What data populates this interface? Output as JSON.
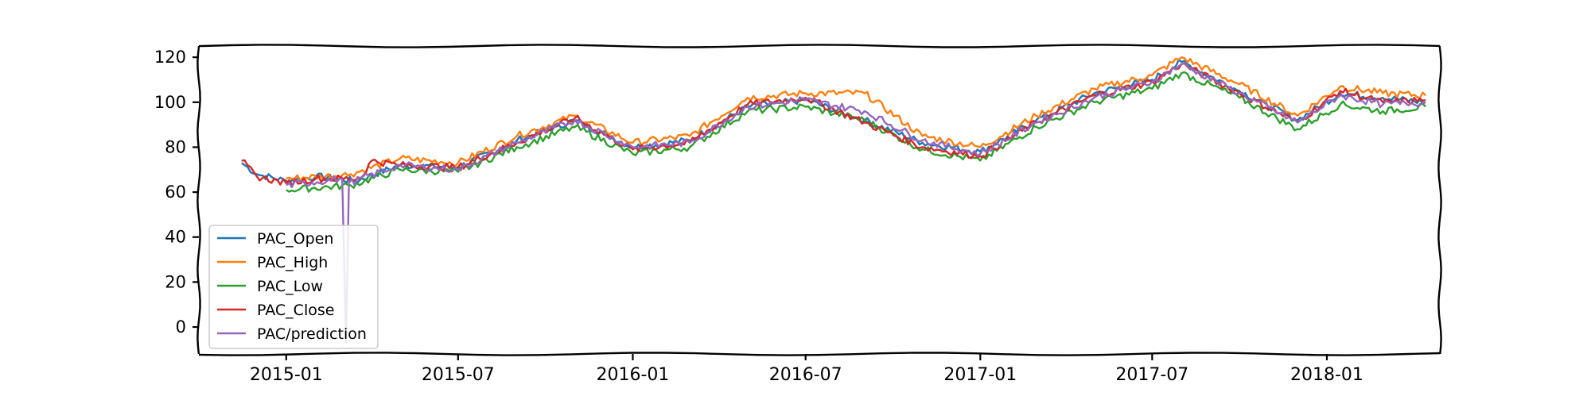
{
  "chart_data": {
    "type": "line",
    "title": "",
    "xlabel": "",
    "ylabel": "",
    "ylim": [
      -12,
      125
    ],
    "x_range": [
      "2014-10-01",
      "2018-04-30"
    ],
    "x_ticks": [
      "2015-01",
      "2015-07",
      "2016-01",
      "2016-07",
      "2017-01",
      "2017-07",
      "2018-01"
    ],
    "y_ticks": [
      "0",
      "20",
      "40",
      "60",
      "80",
      "100",
      "120"
    ],
    "legend_position": "lower-left",
    "grid": false,
    "style": "xkcd",
    "legend": [
      "PAC_Open",
      "PAC_High",
      "PAC_Low",
      "PAC_Close",
      "PAC/prediction"
    ],
    "series": [
      {
        "name": "PAC_Open",
        "color": "#1f77b4",
        "start": "2014-11-15",
        "values": [
          [
            "2014-11-15",
            73
          ],
          [
            "2014-12-01",
            68
          ],
          [
            "2015-01-01",
            65
          ],
          [
            "2015-02-01",
            67
          ],
          [
            "2015-03-15",
            65
          ],
          [
            "2015-05-01",
            72
          ],
          [
            "2015-07-01",
            71
          ],
          [
            "2015-09-01",
            83
          ],
          [
            "2015-11-01",
            92
          ],
          [
            "2016-01-01",
            80
          ],
          [
            "2016-03-01",
            83
          ],
          [
            "2016-05-01",
            98
          ],
          [
            "2016-07-01",
            101
          ],
          [
            "2016-09-01",
            92
          ],
          [
            "2016-11-01",
            82
          ],
          [
            "2017-01-01",
            78
          ],
          [
            "2017-03-01",
            92
          ],
          [
            "2017-05-01",
            104
          ],
          [
            "2017-07-01",
            110
          ],
          [
            "2017-08-01",
            118
          ],
          [
            "2017-10-01",
            105
          ],
          [
            "2017-12-01",
            92
          ],
          [
            "2018-01-15",
            104
          ],
          [
            "2018-03-01",
            102
          ],
          [
            "2018-04-15",
            100
          ]
        ]
      },
      {
        "name": "PAC_High",
        "color": "#ff7f0e",
        "start": "2015-01-01",
        "values": [
          [
            "2015-01-01",
            66
          ],
          [
            "2015-03-10",
            68
          ],
          [
            "2015-05-01",
            75
          ],
          [
            "2015-07-01",
            73
          ],
          [
            "2015-09-01",
            85
          ],
          [
            "2015-11-01",
            94
          ],
          [
            "2016-01-01",
            82
          ],
          [
            "2016-03-01",
            85
          ],
          [
            "2016-05-01",
            102
          ],
          [
            "2016-07-01",
            104
          ],
          [
            "2016-09-01",
            104
          ],
          [
            "2016-11-01",
            85
          ],
          [
            "2017-01-01",
            80
          ],
          [
            "2017-03-01",
            94
          ],
          [
            "2017-05-01",
            106
          ],
          [
            "2017-07-01",
            112
          ],
          [
            "2017-08-01",
            120
          ],
          [
            "2017-10-01",
            108
          ],
          [
            "2017-12-01",
            94
          ],
          [
            "2018-01-15",
            107
          ],
          [
            "2018-03-01",
            104
          ],
          [
            "2018-04-15",
            103
          ]
        ]
      },
      {
        "name": "PAC_Low",
        "color": "#2ca02c",
        "start": "2015-01-01",
        "values": [
          [
            "2015-01-01",
            61
          ],
          [
            "2015-03-10",
            63
          ],
          [
            "2015-05-01",
            70
          ],
          [
            "2015-07-01",
            69
          ],
          [
            "2015-09-01",
            80
          ],
          [
            "2015-11-01",
            89
          ],
          [
            "2016-01-01",
            77
          ],
          [
            "2016-03-01",
            80
          ],
          [
            "2016-05-01",
            96
          ],
          [
            "2016-07-01",
            98
          ],
          [
            "2016-09-01",
            92
          ],
          [
            "2016-11-01",
            79
          ],
          [
            "2017-01-01",
            74
          ],
          [
            "2017-03-01",
            89
          ],
          [
            "2017-05-01",
            100
          ],
          [
            "2017-07-01",
            106
          ],
          [
            "2017-08-01",
            113
          ],
          [
            "2017-10-01",
            102
          ],
          [
            "2017-12-01",
            88
          ],
          [
            "2018-01-15",
            99
          ],
          [
            "2018-03-01",
            96
          ],
          [
            "2018-04-15",
            98
          ]
        ]
      },
      {
        "name": "PAC_Close",
        "color": "#d62728",
        "start": "2014-11-15",
        "values": [
          [
            "2014-11-15",
            74
          ],
          [
            "2014-12-01",
            67
          ],
          [
            "2015-01-01",
            64
          ],
          [
            "2015-02-01",
            66
          ],
          [
            "2015-03-20",
            66
          ],
          [
            "2015-04-01",
            74
          ],
          [
            "2015-05-01",
            72
          ],
          [
            "2015-07-01",
            71
          ],
          [
            "2015-09-01",
            82
          ],
          [
            "2015-11-01",
            93
          ],
          [
            "2016-01-01",
            79
          ],
          [
            "2016-03-01",
            82
          ],
          [
            "2016-05-01",
            99
          ],
          [
            "2016-07-01",
            102
          ],
          [
            "2016-09-01",
            91
          ],
          [
            "2016-11-01",
            80
          ],
          [
            "2017-01-01",
            76
          ],
          [
            "2017-03-01",
            91
          ],
          [
            "2017-05-01",
            103
          ],
          [
            "2017-07-01",
            109
          ],
          [
            "2017-08-01",
            117
          ],
          [
            "2017-10-01",
            104
          ],
          [
            "2017-12-01",
            91
          ],
          [
            "2018-01-15",
            105
          ],
          [
            "2018-03-01",
            100
          ],
          [
            "2018-04-15",
            101
          ]
        ]
      },
      {
        "name": "PAC/prediction",
        "color": "#9467bd",
        "start": "2015-01-01",
        "values": [
          [
            "2015-01-01",
            63
          ],
          [
            "2015-03-01",
            66
          ],
          [
            "2015-03-05",
            -7
          ],
          [
            "2015-03-08",
            64
          ],
          [
            "2015-05-01",
            72
          ],
          [
            "2015-07-01",
            70
          ],
          [
            "2015-09-01",
            82
          ],
          [
            "2015-11-01",
            92
          ],
          [
            "2016-01-01",
            80
          ],
          [
            "2016-03-01",
            82
          ],
          [
            "2016-05-01",
            98
          ],
          [
            "2016-07-01",
            101
          ],
          [
            "2016-09-01",
            96
          ],
          [
            "2016-11-01",
            83
          ],
          [
            "2017-01-01",
            77
          ],
          [
            "2017-03-01",
            91
          ],
          [
            "2017-05-01",
            102
          ],
          [
            "2017-07-01",
            109
          ],
          [
            "2017-08-01",
            117
          ],
          [
            "2017-10-01",
            104
          ],
          [
            "2017-12-01",
            91
          ],
          [
            "2018-01-15",
            103
          ],
          [
            "2018-03-01",
            99
          ],
          [
            "2018-04-15",
            100
          ]
        ]
      }
    ]
  }
}
